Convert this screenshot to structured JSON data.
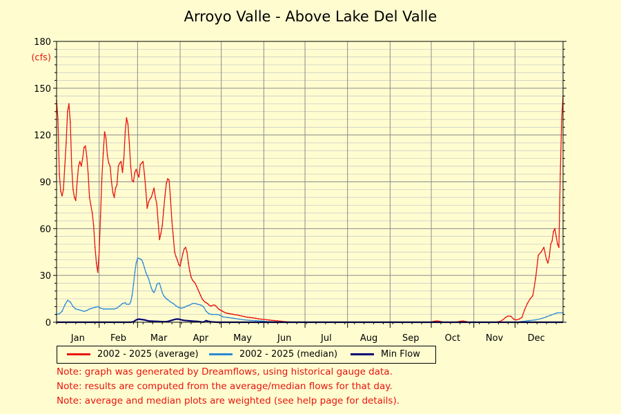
{
  "title": "Arroyo Valle - Above Lake Del Valle",
  "notes": [
    "Note: graph was generated by Dreamflows, using historical gauge data.",
    "Note: results are computed from the average/median flows for that day.",
    "Note: average and median plots are weighted (see help page for details)."
  ],
  "chart_data": {
    "type": "line",
    "title": "Arroyo Valle - Above Lake Del Valle",
    "ylabel": "(cfs)",
    "xlabel": "",
    "ylim": [
      0,
      180
    ],
    "xlim": [
      1,
      366
    ],
    "yticks": [
      0,
      30,
      60,
      90,
      120,
      150,
      180
    ],
    "months": [
      "Jan",
      "Feb",
      "Mar",
      "Apr",
      "May",
      "Jun",
      "Jul",
      "Aug",
      "Sep",
      "Oct",
      "Nov",
      "Dec"
    ],
    "month_starts": [
      1,
      32,
      60,
      91,
      121,
      152,
      182,
      213,
      244,
      274,
      305,
      335
    ],
    "grid": true,
    "legend_position": "bottom",
    "series": [
      {
        "name": "2002 - 2025 (average)",
        "color": "#e8120c",
        "points": [
          [
            1,
            142
          ],
          [
            2,
            130
          ],
          [
            3,
            95
          ],
          [
            4,
            84
          ],
          [
            5,
            81
          ],
          [
            6,
            85
          ],
          [
            7,
            100
          ],
          [
            8,
            115
          ],
          [
            9,
            135
          ],
          [
            10,
            140
          ],
          [
            11,
            128
          ],
          [
            12,
            100
          ],
          [
            13,
            85
          ],
          [
            14,
            80
          ],
          [
            15,
            78
          ],
          [
            16,
            90
          ],
          [
            17,
            100
          ],
          [
            18,
            103
          ],
          [
            19,
            100
          ],
          [
            20,
            105
          ],
          [
            21,
            112
          ],
          [
            22,
            113
          ],
          [
            23,
            106
          ],
          [
            24,
            95
          ],
          [
            25,
            80
          ],
          [
            26,
            75
          ],
          [
            27,
            70
          ],
          [
            28,
            62
          ],
          [
            29,
            48
          ],
          [
            30,
            38
          ],
          [
            31,
            32
          ],
          [
            32,
            45
          ],
          [
            33,
            68
          ],
          [
            34,
            92
          ],
          [
            35,
            108
          ],
          [
            36,
            122
          ],
          [
            37,
            118
          ],
          [
            38,
            107
          ],
          [
            39,
            102
          ],
          [
            40,
            100
          ],
          [
            41,
            90
          ],
          [
            42,
            83
          ],
          [
            43,
            80
          ],
          [
            44,
            86
          ],
          [
            45,
            88
          ],
          [
            46,
            100
          ],
          [
            47,
            102
          ],
          [
            48,
            103
          ],
          [
            49,
            96
          ],
          [
            50,
            105
          ],
          [
            51,
            122
          ],
          [
            52,
            131
          ],
          [
            53,
            127
          ],
          [
            54,
            115
          ],
          [
            55,
            100
          ],
          [
            56,
            91
          ],
          [
            57,
            90
          ],
          [
            58,
            96
          ],
          [
            59,
            98
          ],
          [
            60,
            95
          ],
          [
            61,
            93
          ],
          [
            62,
            101
          ],
          [
            63,
            102
          ],
          [
            64,
            103
          ],
          [
            65,
            95
          ],
          [
            66,
            85
          ],
          [
            67,
            73
          ],
          [
            68,
            77
          ],
          [
            69,
            79
          ],
          [
            70,
            80
          ],
          [
            71,
            83
          ],
          [
            72,
            86
          ],
          [
            73,
            80
          ],
          [
            74,
            76
          ],
          [
            75,
            64
          ],
          [
            76,
            53
          ],
          [
            77,
            57
          ],
          [
            78,
            62
          ],
          [
            79,
            72
          ],
          [
            80,
            81
          ],
          [
            81,
            89
          ],
          [
            82,
            92
          ],
          [
            83,
            91
          ],
          [
            84,
            79
          ],
          [
            85,
            65
          ],
          [
            86,
            55
          ],
          [
            87,
            45
          ],
          [
            88,
            42
          ],
          [
            89,
            40
          ],
          [
            90,
            37
          ],
          [
            91,
            36
          ],
          [
            92,
            40
          ],
          [
            93,
            44
          ],
          [
            94,
            47
          ],
          [
            95,
            48
          ],
          [
            96,
            45
          ],
          [
            97,
            38
          ],
          [
            98,
            33
          ],
          [
            99,
            29
          ],
          [
            100,
            27
          ],
          [
            101,
            26
          ],
          [
            102,
            25
          ],
          [
            103,
            23
          ],
          [
            104,
            21
          ],
          [
            105,
            19
          ],
          [
            106,
            17
          ],
          [
            107,
            15
          ],
          [
            108,
            14
          ],
          [
            109,
            13
          ],
          [
            110,
            12.5
          ],
          [
            111,
            12
          ],
          [
            112,
            11
          ],
          [
            113,
            10.5
          ],
          [
            114,
            10.5
          ],
          [
            115,
            11
          ],
          [
            116,
            11
          ],
          [
            117,
            10.5
          ],
          [
            118,
            9.5
          ],
          [
            119,
            8.5
          ],
          [
            120,
            8
          ],
          [
            121,
            7.5
          ],
          [
            122,
            7
          ],
          [
            123,
            6.5
          ],
          [
            124,
            6
          ],
          [
            125,
            5.8
          ],
          [
            126,
            5.6
          ],
          [
            127,
            5.5
          ],
          [
            128,
            5.3
          ],
          [
            129,
            5.2
          ],
          [
            130,
            5
          ],
          [
            132,
            4.7
          ],
          [
            134,
            4.4
          ],
          [
            136,
            4
          ],
          [
            138,
            3.6
          ],
          [
            140,
            3.2
          ],
          [
            142,
            3
          ],
          [
            144,
            2.8
          ],
          [
            146,
            2.5
          ],
          [
            148,
            2.2
          ],
          [
            150,
            2
          ],
          [
            152,
            1.8
          ],
          [
            154,
            1.6
          ],
          [
            156,
            1.4
          ],
          [
            158,
            1.2
          ],
          [
            160,
            1
          ],
          [
            162,
            0.9
          ],
          [
            164,
            0.7
          ],
          [
            166,
            0.5
          ],
          [
            168,
            0.3
          ],
          [
            170,
            0.2
          ],
          [
            172,
            0.1
          ],
          [
            175,
            0.05
          ],
          [
            180,
            0
          ],
          [
            200,
            0
          ],
          [
            250,
            0
          ],
          [
            272,
            0
          ],
          [
            274,
            0.2
          ],
          [
            276,
            0.6
          ],
          [
            278,
            0.9
          ],
          [
            280,
            0.6
          ],
          [
            282,
            0.2
          ],
          [
            284,
            0
          ],
          [
            290,
            0
          ],
          [
            293,
            0.2
          ],
          [
            295,
            0.6
          ],
          [
            297,
            0.8
          ],
          [
            299,
            0.5
          ],
          [
            301,
            0.1
          ],
          [
            303,
            0
          ],
          [
            320,
            0
          ],
          [
            324,
            0.5
          ],
          [
            326,
            1.5
          ],
          [
            328,
            3
          ],
          [
            330,
            4
          ],
          [
            332,
            3.8
          ],
          [
            334,
            2
          ],
          [
            336,
            1.5
          ],
          [
            338,
            2
          ],
          [
            340,
            3
          ],
          [
            342,
            8
          ],
          [
            344,
            12
          ],
          [
            346,
            15
          ],
          [
            348,
            17
          ],
          [
            350,
            28
          ],
          [
            352,
            43
          ],
          [
            354,
            45
          ],
          [
            356,
            48
          ],
          [
            358,
            40
          ],
          [
            359,
            38
          ],
          [
            360,
            42
          ],
          [
            361,
            50
          ],
          [
            362,
            52
          ],
          [
            363,
            58
          ],
          [
            364,
            60
          ],
          [
            365,
            55
          ],
          [
            366,
            50
          ],
          [
            367,
            48
          ],
          [
            368,
            95
          ],
          [
            369,
            130
          ],
          [
            370,
            145
          ]
        ]
      },
      {
        "name": "2002 - 2025 (median)",
        "color": "#2a88d8",
        "points": [
          [
            1,
            5
          ],
          [
            3,
            5.5
          ],
          [
            5,
            7
          ],
          [
            7,
            11
          ],
          [
            9,
            14
          ],
          [
            11,
            13
          ],
          [
            13,
            10
          ],
          [
            15,
            8.5
          ],
          [
            17,
            8
          ],
          [
            19,
            7.5
          ],
          [
            21,
            7
          ],
          [
            23,
            7.5
          ],
          [
            25,
            8.5
          ],
          [
            27,
            9
          ],
          [
            29,
            9.5
          ],
          [
            31,
            10
          ],
          [
            33,
            9
          ],
          [
            35,
            8.5
          ],
          [
            37,
            8.5
          ],
          [
            39,
            8.5
          ],
          [
            41,
            8.5
          ],
          [
            43,
            8.5
          ],
          [
            45,
            9
          ],
          [
            47,
            10.5
          ],
          [
            49,
            12
          ],
          [
            51,
            12.5
          ],
          [
            52,
            11.5
          ],
          [
            54,
            11.5
          ],
          [
            55,
            13
          ],
          [
            56,
            17
          ],
          [
            57,
            24
          ],
          [
            58,
            32
          ],
          [
            59,
            38
          ],
          [
            60,
            41
          ],
          [
            61,
            41
          ],
          [
            62,
            40.5
          ],
          [
            63,
            40
          ],
          [
            64,
            38
          ],
          [
            65,
            35
          ],
          [
            66,
            32
          ],
          [
            67,
            30
          ],
          [
            68,
            28
          ],
          [
            69,
            25
          ],
          [
            70,
            22
          ],
          [
            71,
            20
          ],
          [
            72,
            19
          ],
          [
            73,
            21
          ],
          [
            74,
            24
          ],
          [
            75,
            25
          ],
          [
            76,
            25
          ],
          [
            77,
            22
          ],
          [
            78,
            19
          ],
          [
            79,
            17
          ],
          [
            80,
            16
          ],
          [
            81,
            15
          ],
          [
            82,
            14.5
          ],
          [
            84,
            13
          ],
          [
            86,
            12
          ],
          [
            88,
            10.5
          ],
          [
            90,
            9.5
          ],
          [
            92,
            9
          ],
          [
            94,
            9.5
          ],
          [
            96,
            10.5
          ],
          [
            98,
            11
          ],
          [
            100,
            12
          ],
          [
            102,
            12
          ],
          [
            104,
            11.5
          ],
          [
            106,
            11
          ],
          [
            108,
            10
          ],
          [
            110,
            7
          ],
          [
            112,
            5.5
          ],
          [
            114,
            5
          ],
          [
            118,
            5
          ],
          [
            120,
            4.5
          ],
          [
            122,
            3.5
          ],
          [
            126,
            3
          ],
          [
            130,
            2.5
          ],
          [
            134,
            2
          ],
          [
            138,
            1.5
          ],
          [
            142,
            1.2
          ],
          [
            146,
            1
          ],
          [
            150,
            0.8
          ],
          [
            154,
            0.5
          ],
          [
            158,
            0.3
          ],
          [
            162,
            0.2
          ],
          [
            166,
            0.1
          ],
          [
            170,
            0.05
          ],
          [
            175,
            0
          ],
          [
            330,
            0
          ],
          [
            335,
            0
          ],
          [
            340,
            0.5
          ],
          [
            345,
            1
          ],
          [
            350,
            1.5
          ],
          [
            355,
            2.5
          ],
          [
            358,
            3.5
          ],
          [
            361,
            4.5
          ],
          [
            364,
            5.5
          ],
          [
            366,
            6
          ],
          [
            370,
            6
          ]
        ]
      },
      {
        "name": "Min Flow",
        "color": "#000070",
        "points": [
          [
            1,
            0
          ],
          [
            55,
            0
          ],
          [
            57,
            0.3
          ],
          [
            59,
            1.5
          ],
          [
            61,
            2
          ],
          [
            65,
            1.5
          ],
          [
            67,
            1
          ],
          [
            69,
            0.7
          ],
          [
            75,
            0.5
          ],
          [
            80,
            0.3
          ],
          [
            82,
            0.5
          ],
          [
            84,
            1
          ],
          [
            86,
            1.5
          ],
          [
            88,
            2
          ],
          [
            90,
            2
          ],
          [
            92,
            1.5
          ],
          [
            94,
            1.2
          ],
          [
            96,
            1
          ],
          [
            100,
            0.7
          ],
          [
            104,
            0.5
          ],
          [
            106,
            0.2
          ],
          [
            108,
            0.1
          ],
          [
            110,
            1
          ],
          [
            112,
            0.5
          ],
          [
            114,
            0.2
          ],
          [
            118,
            0
          ],
          [
            370,
            0
          ]
        ]
      }
    ]
  }
}
